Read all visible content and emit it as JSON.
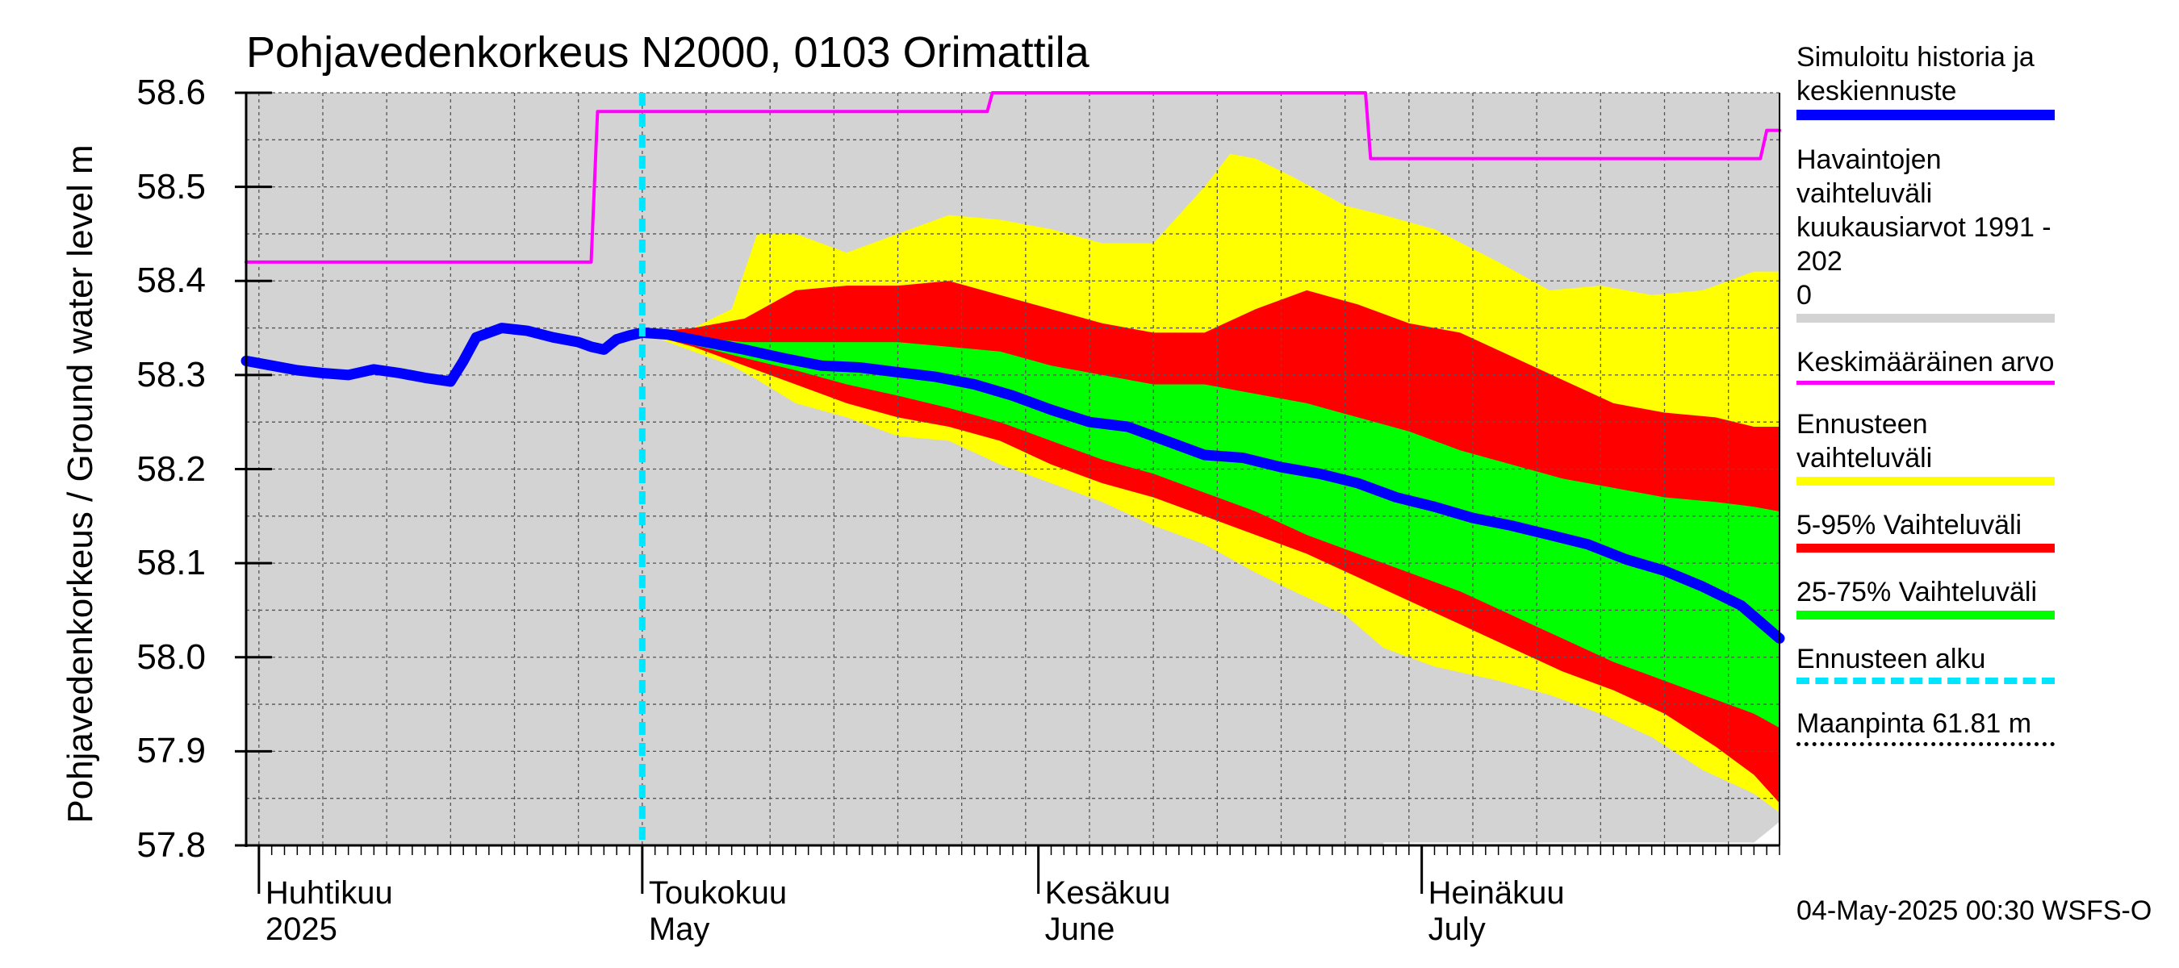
{
  "title": "Pohjavedenkorkeus N2000, 0103 Orimattila",
  "y_axis_title": "Pohjavedenkorkeus / Ground water level   m",
  "footer": "04-May-2025 00:30 WSFS-O",
  "x_month_labels": [
    {
      "day": 0,
      "fi": "Huhtikuu",
      "en": "2025"
    },
    {
      "day": 30,
      "fi": "Toukokuu",
      "en": "May"
    },
    {
      "day": 61,
      "fi": "Kesäkuu",
      "en": "June"
    },
    {
      "day": 91,
      "fi": "Heinäkuu",
      "en": "July"
    }
  ],
  "legend": [
    {
      "label": "Simuloitu historia ja\nkeskiennuste",
      "color": "#0000ff",
      "style": "thick"
    },
    {
      "label": "Havaintojen vaihteluväli\n kuukausiarvot 1991 - 202\n0",
      "color": "#d3d3d3",
      "style": "band"
    },
    {
      "label": "Keskimääräinen arvo",
      "color": "#ff00ff",
      "style": "line"
    },
    {
      "label": "Ennusteen vaihteluväli",
      "color": "#ffff00",
      "style": "band"
    },
    {
      "label": "5-95% Vaihteluväli",
      "color": "#ff0000",
      "style": "band"
    },
    {
      "label": "25-75% Vaihteluväli",
      "color": "#00ff00",
      "style": "band"
    },
    {
      "label": "Ennusteen alku",
      "color": "#00e5ff",
      "style": "dashed"
    },
    {
      "label": "Maanpinta 61.81 m",
      "color": "#000000",
      "style": "dotted"
    }
  ],
  "chart_data": {
    "type": "area",
    "title": "Pohjavedenkorkeus N2000, 0103 Orimattila",
    "xlabel": "",
    "ylabel": "Pohjavedenkorkeus / Ground water level   m",
    "x_unit": "days since 2025-04-01",
    "xlim": [
      -1,
      119
    ],
    "ylim": [
      57.8,
      58.6
    ],
    "yticks": [
      57.8,
      57.9,
      58.0,
      58.1,
      58.2,
      58.3,
      58.4,
      58.5,
      58.6
    ],
    "grid": true,
    "forecast_start": 30,
    "series": [
      {
        "name": "Havaintojen vaihteluväli kuukausiarvot 1991 - 2020",
        "kind": "band",
        "color": "#d3d3d3",
        "x": [
          -1,
          88,
          88,
          117,
          119
        ],
        "lower": [
          57.8,
          57.8,
          57.803,
          57.803,
          57.825
        ],
        "upper": [
          58.6,
          58.6,
          58.6,
          58.6,
          58.6
        ]
      },
      {
        "name": "Ennusteen vaihteluväli",
        "kind": "band",
        "color": "#ffff00",
        "x": [
          30,
          34,
          37,
          39,
          42,
          46,
          50,
          54,
          58,
          62,
          66,
          70,
          74,
          76,
          78,
          81,
          85,
          88,
          92,
          97,
          101,
          105,
          109,
          113,
          117,
          119
        ],
        "lower": [
          58.345,
          58.325,
          58.31,
          58.295,
          58.27,
          58.255,
          58.235,
          58.23,
          58.205,
          58.185,
          58.165,
          58.14,
          58.12,
          58.105,
          58.09,
          58.07,
          58.045,
          58.01,
          57.99,
          57.975,
          57.96,
          57.94,
          57.915,
          57.88,
          57.855,
          57.835
        ],
        "upper": [
          58.345,
          58.35,
          58.37,
          58.45,
          58.45,
          58.43,
          58.45,
          58.47,
          58.465,
          58.455,
          58.44,
          58.44,
          58.5,
          58.535,
          58.53,
          58.51,
          58.48,
          58.47,
          58.455,
          58.42,
          58.39,
          58.395,
          58.385,
          58.39,
          58.41,
          58.41
        ]
      },
      {
        "name": "5-95% Vaihteluväli",
        "kind": "band",
        "color": "#ff0000",
        "x": [
          30,
          34,
          38,
          42,
          46,
          50,
          54,
          58,
          62,
          66,
          70,
          74,
          78,
          82,
          86,
          90,
          94,
          98,
          102,
          106,
          110,
          114,
          117,
          119
        ],
        "lower": [
          58.345,
          58.33,
          58.31,
          58.29,
          58.27,
          58.255,
          58.245,
          58.23,
          58.205,
          58.185,
          58.17,
          58.15,
          58.13,
          58.11,
          58.085,
          58.06,
          58.035,
          58.01,
          57.985,
          57.965,
          57.94,
          57.905,
          57.875,
          57.845
        ],
        "upper": [
          58.345,
          58.35,
          58.36,
          58.39,
          58.395,
          58.395,
          58.4,
          58.385,
          58.37,
          58.355,
          58.345,
          58.345,
          58.37,
          58.39,
          58.375,
          58.355,
          58.345,
          58.32,
          58.295,
          58.27,
          58.26,
          58.255,
          58.245,
          58.245
        ]
      },
      {
        "name": "25-75% Vaihteluväli",
        "kind": "band",
        "color": "#00ff00",
        "x": [
          30,
          34,
          38,
          42,
          46,
          50,
          54,
          58,
          62,
          66,
          70,
          74,
          78,
          82,
          86,
          90,
          94,
          98,
          102,
          106,
          110,
          114,
          117,
          119
        ],
        "lower": [
          58.345,
          58.332,
          58.318,
          58.305,
          58.29,
          58.278,
          58.265,
          58.25,
          58.23,
          58.21,
          58.195,
          58.175,
          58.155,
          58.13,
          58.11,
          58.09,
          58.07,
          58.045,
          58.02,
          57.995,
          57.975,
          57.955,
          57.94,
          57.925
        ],
        "upper": [
          58.345,
          58.34,
          58.335,
          58.335,
          58.335,
          58.335,
          58.33,
          58.325,
          58.31,
          58.3,
          58.29,
          58.29,
          58.28,
          58.27,
          58.255,
          58.24,
          58.22,
          58.205,
          58.19,
          58.18,
          58.17,
          58.165,
          58.16,
          58.155
        ]
      },
      {
        "name": "Keskimääräinen arvo",
        "kind": "line",
        "color": "#ff00ff",
        "x": [
          -1,
          26,
          26.5,
          57,
          57.4,
          86.6,
          87,
          117.5,
          118,
          119
        ],
        "y": [
          58.42,
          58.42,
          58.58,
          58.58,
          58.6,
          58.6,
          58.53,
          58.53,
          58.56,
          58.56
        ]
      },
      {
        "name": "Simuloitu historia ja keskiennuste",
        "kind": "line",
        "color": "#0000ff",
        "x": [
          -1,
          1,
          3,
          5,
          7,
          8,
          9,
          11,
          13,
          14,
          15,
          16,
          17,
          19,
          21,
          23,
          25,
          26,
          27,
          28,
          29,
          30,
          32,
          35,
          38,
          41,
          44,
          47,
          50,
          53,
          56,
          59,
          62,
          65,
          68,
          71,
          74,
          77,
          80,
          83,
          86,
          89,
          92,
          95,
          98,
          101,
          104,
          107,
          110,
          113,
          116,
          119
        ],
        "y": [
          58.315,
          58.31,
          58.305,
          58.302,
          58.3,
          58.303,
          58.306,
          58.302,
          58.297,
          58.295,
          58.293,
          58.315,
          58.34,
          58.35,
          58.347,
          58.34,
          58.335,
          58.33,
          58.327,
          58.338,
          58.342,
          58.345,
          58.343,
          58.335,
          58.327,
          58.318,
          58.31,
          58.308,
          58.303,
          58.298,
          58.29,
          58.278,
          58.263,
          58.25,
          58.245,
          58.23,
          58.215,
          58.212,
          58.202,
          58.195,
          58.185,
          58.17,
          58.16,
          58.148,
          58.14,
          58.13,
          58.12,
          58.104,
          58.092,
          58.075,
          58.055,
          58.02
        ]
      },
      {
        "name": "Ennusteen alku",
        "kind": "vline",
        "color": "#00e5ff",
        "x": 30
      },
      {
        "name": "Maanpinta 61.81 m",
        "kind": "ground",
        "color": "#000000",
        "y": 61.81
      }
    ]
  }
}
